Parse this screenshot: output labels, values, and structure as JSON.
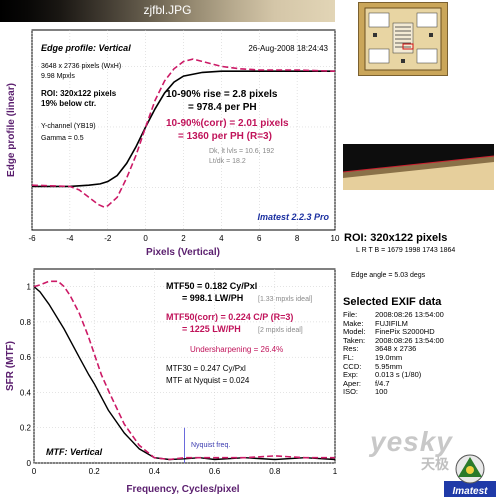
{
  "file_title": "zjfbl.JPG",
  "colors": {
    "edge_curve": "#000000",
    "corrected_curve": "#cc1a66",
    "axis_label": "#5a1e6e",
    "mtf_corr_text": "#c0135a",
    "imatest_text": "#1a2fa0",
    "ideal_text": "#8a8a8a",
    "gradient_dark": "#000000",
    "gradient_light": "#e2d5b6"
  },
  "edge_panel": {
    "header_left": "Edge profile: Vertical",
    "header_right": "26-Aug-2008 18:24:43",
    "info_lines": [
      "3648 x 2736 pixels (WxH)",
      "9.98 Mpxls"
    ],
    "roi_lines": [
      "ROI: 320x122 pixels",
      "19% below ctr."
    ],
    "channel_lines": [
      "Y-channel (YB19)",
      "Gamma = 0.5"
    ],
    "rise_line1": "10-90% rise = 2.8 pixels",
    "rise_line2": "= 978.4 per PH",
    "corr_line1": "10-90%(corr) = 2.01 pixels",
    "corr_line2": "= 1360 per PH  (R=3)",
    "dk_line1": "Dk, lt lvls = 10.6, 192",
    "dk_line2": "Lt/dk = 18.2",
    "imatest_version": "Imatest 2.2.3 Pro"
  },
  "mtf_panel": {
    "mtf50": "MTF50 = 0.182 Cy/Pxl",
    "mtf50_lw": "= 998.1 LW/PH",
    "mtf50_ideal": "[1.33 mpxls ideal]",
    "mtf50corr": "MTF50(corr) = 0.224 C/P  (R=3)",
    "mtf50corr_lw": "= 1225 LW/PH",
    "mtf50corr_ideal": "[2 mpxls ideal]",
    "undersharpening": "Undersharpening = 26.4%",
    "mtf30": "MTF30 = 0.247 Cy/Pxl",
    "mtf_nyquist": "MTF at Nyquist = 0.024",
    "nyquist_label": "Nyquist freq.",
    "panel_label": "MTF: Vertical"
  },
  "side": {
    "roi_title": "ROI: 320x122 pixels",
    "roi_coords": "L R T B = 1679 1998 1743 1864",
    "edge_angle": "Edge angle = 5.03 degs",
    "exif_title": "Selected EXIF data",
    "exif": [
      {
        "key": "File:",
        "value": "2008:08:26 13:54:00"
      },
      {
        "key": "Make:",
        "value": "FUJIFILM"
      },
      {
        "key": "Model:",
        "value": "FinePix S2000HD"
      },
      {
        "key": "Taken:",
        "value": "2008:08:26 13:54:00"
      },
      {
        "key": "Res:",
        "value": "3648 x 2736"
      },
      {
        "key": "FL:",
        "value": "19.0mm"
      },
      {
        "key": "CCD:",
        "value": "5.95mm"
      },
      {
        "key": "Exp:",
        "value": "0.013 s (1/80)"
      },
      {
        "key": "Aper:",
        "value": "f/4.7"
      },
      {
        "key": "ISO:",
        "value": "100"
      }
    ],
    "watermark": "yesky",
    "watermark_cn": "天极",
    "logo_label": "Imatest"
  },
  "chart_data": [
    {
      "type": "line",
      "title": "",
      "xlabel": "Pixels (Vertical)",
      "ylabel": "Edge profile (linear)",
      "xlim": [
        -6,
        10
      ],
      "xticks": [
        -6,
        -4,
        -2,
        0,
        2,
        4,
        6,
        8,
        10
      ],
      "grid": true,
      "series": [
        {
          "x": [
            -6,
            -4,
            -3,
            -2.4,
            -2,
            -1.5,
            -1,
            -0.5,
            0,
            0.5,
            1,
            1.5,
            2,
            3,
            4,
            6,
            8,
            10
          ],
          "y": [
            0.01,
            0.01,
            0.02,
            0.03,
            0.05,
            0.1,
            0.2,
            0.34,
            0.5,
            0.65,
            0.78,
            0.87,
            0.92,
            0.95,
            0.96,
            0.96,
            0.96,
            0.96
          ]
        },
        {
          "x": [
            -6,
            -4,
            -3.5,
            -3,
            -2.5,
            -2.2,
            -2,
            -1.5,
            -1,
            -0.5,
            0,
            0.5,
            1,
            1.5,
            2,
            2.5,
            3,
            4,
            5,
            6,
            8,
            10
          ],
          "y": [
            0.02,
            0.01,
            -0.02,
            -0.08,
            -0.14,
            -0.16,
            -0.15,
            -0.08,
            0.08,
            0.27,
            0.5,
            0.72,
            0.88,
            0.98,
            1.04,
            1.06,
            1.04,
            1.0,
            0.98,
            0.97,
            0.97,
            0.96
          ]
        }
      ]
    },
    {
      "type": "line",
      "title": "",
      "xlabel": "Frequency, Cycles/pixel",
      "ylabel": "SFR (MTF)",
      "xlim": [
        0,
        1
      ],
      "ylim": [
        0,
        1
      ],
      "xticks": [
        0,
        0.2,
        0.4,
        0.6,
        0.8,
        1
      ],
      "yticks": [
        0,
        0.2,
        0.4,
        0.6,
        0.8,
        1
      ],
      "grid": true,
      "nyquist_x": 0.5,
      "series": [
        {
          "x": [
            0,
            0.02,
            0.05,
            0.1,
            0.15,
            0.182,
            0.2,
            0.247,
            0.3,
            0.35,
            0.4,
            0.45,
            0.5,
            0.55,
            0.6,
            0.7,
            0.8,
            0.9,
            1.0
          ],
          "y": [
            1.0,
            0.97,
            0.9,
            0.76,
            0.6,
            0.5,
            0.45,
            0.3,
            0.17,
            0.08,
            0.03,
            0.02,
            0.024,
            0.03,
            0.02,
            0.03,
            0.02,
            0.03,
            0.02
          ]
        },
        {
          "x": [
            0,
            0.02,
            0.05,
            0.08,
            0.1,
            0.12,
            0.15,
            0.18,
            0.2,
            0.224,
            0.25,
            0.3,
            0.35,
            0.4,
            0.45,
            0.5,
            0.6,
            0.7,
            0.8,
            0.9,
            1.0
          ],
          "y": [
            1.0,
            1.01,
            1.03,
            1.03,
            1.0,
            0.95,
            0.85,
            0.72,
            0.62,
            0.5,
            0.4,
            0.22,
            0.1,
            0.03,
            0.02,
            0.03,
            0.03,
            0.03,
            0.04,
            0.03,
            0.03
          ]
        }
      ]
    }
  ]
}
